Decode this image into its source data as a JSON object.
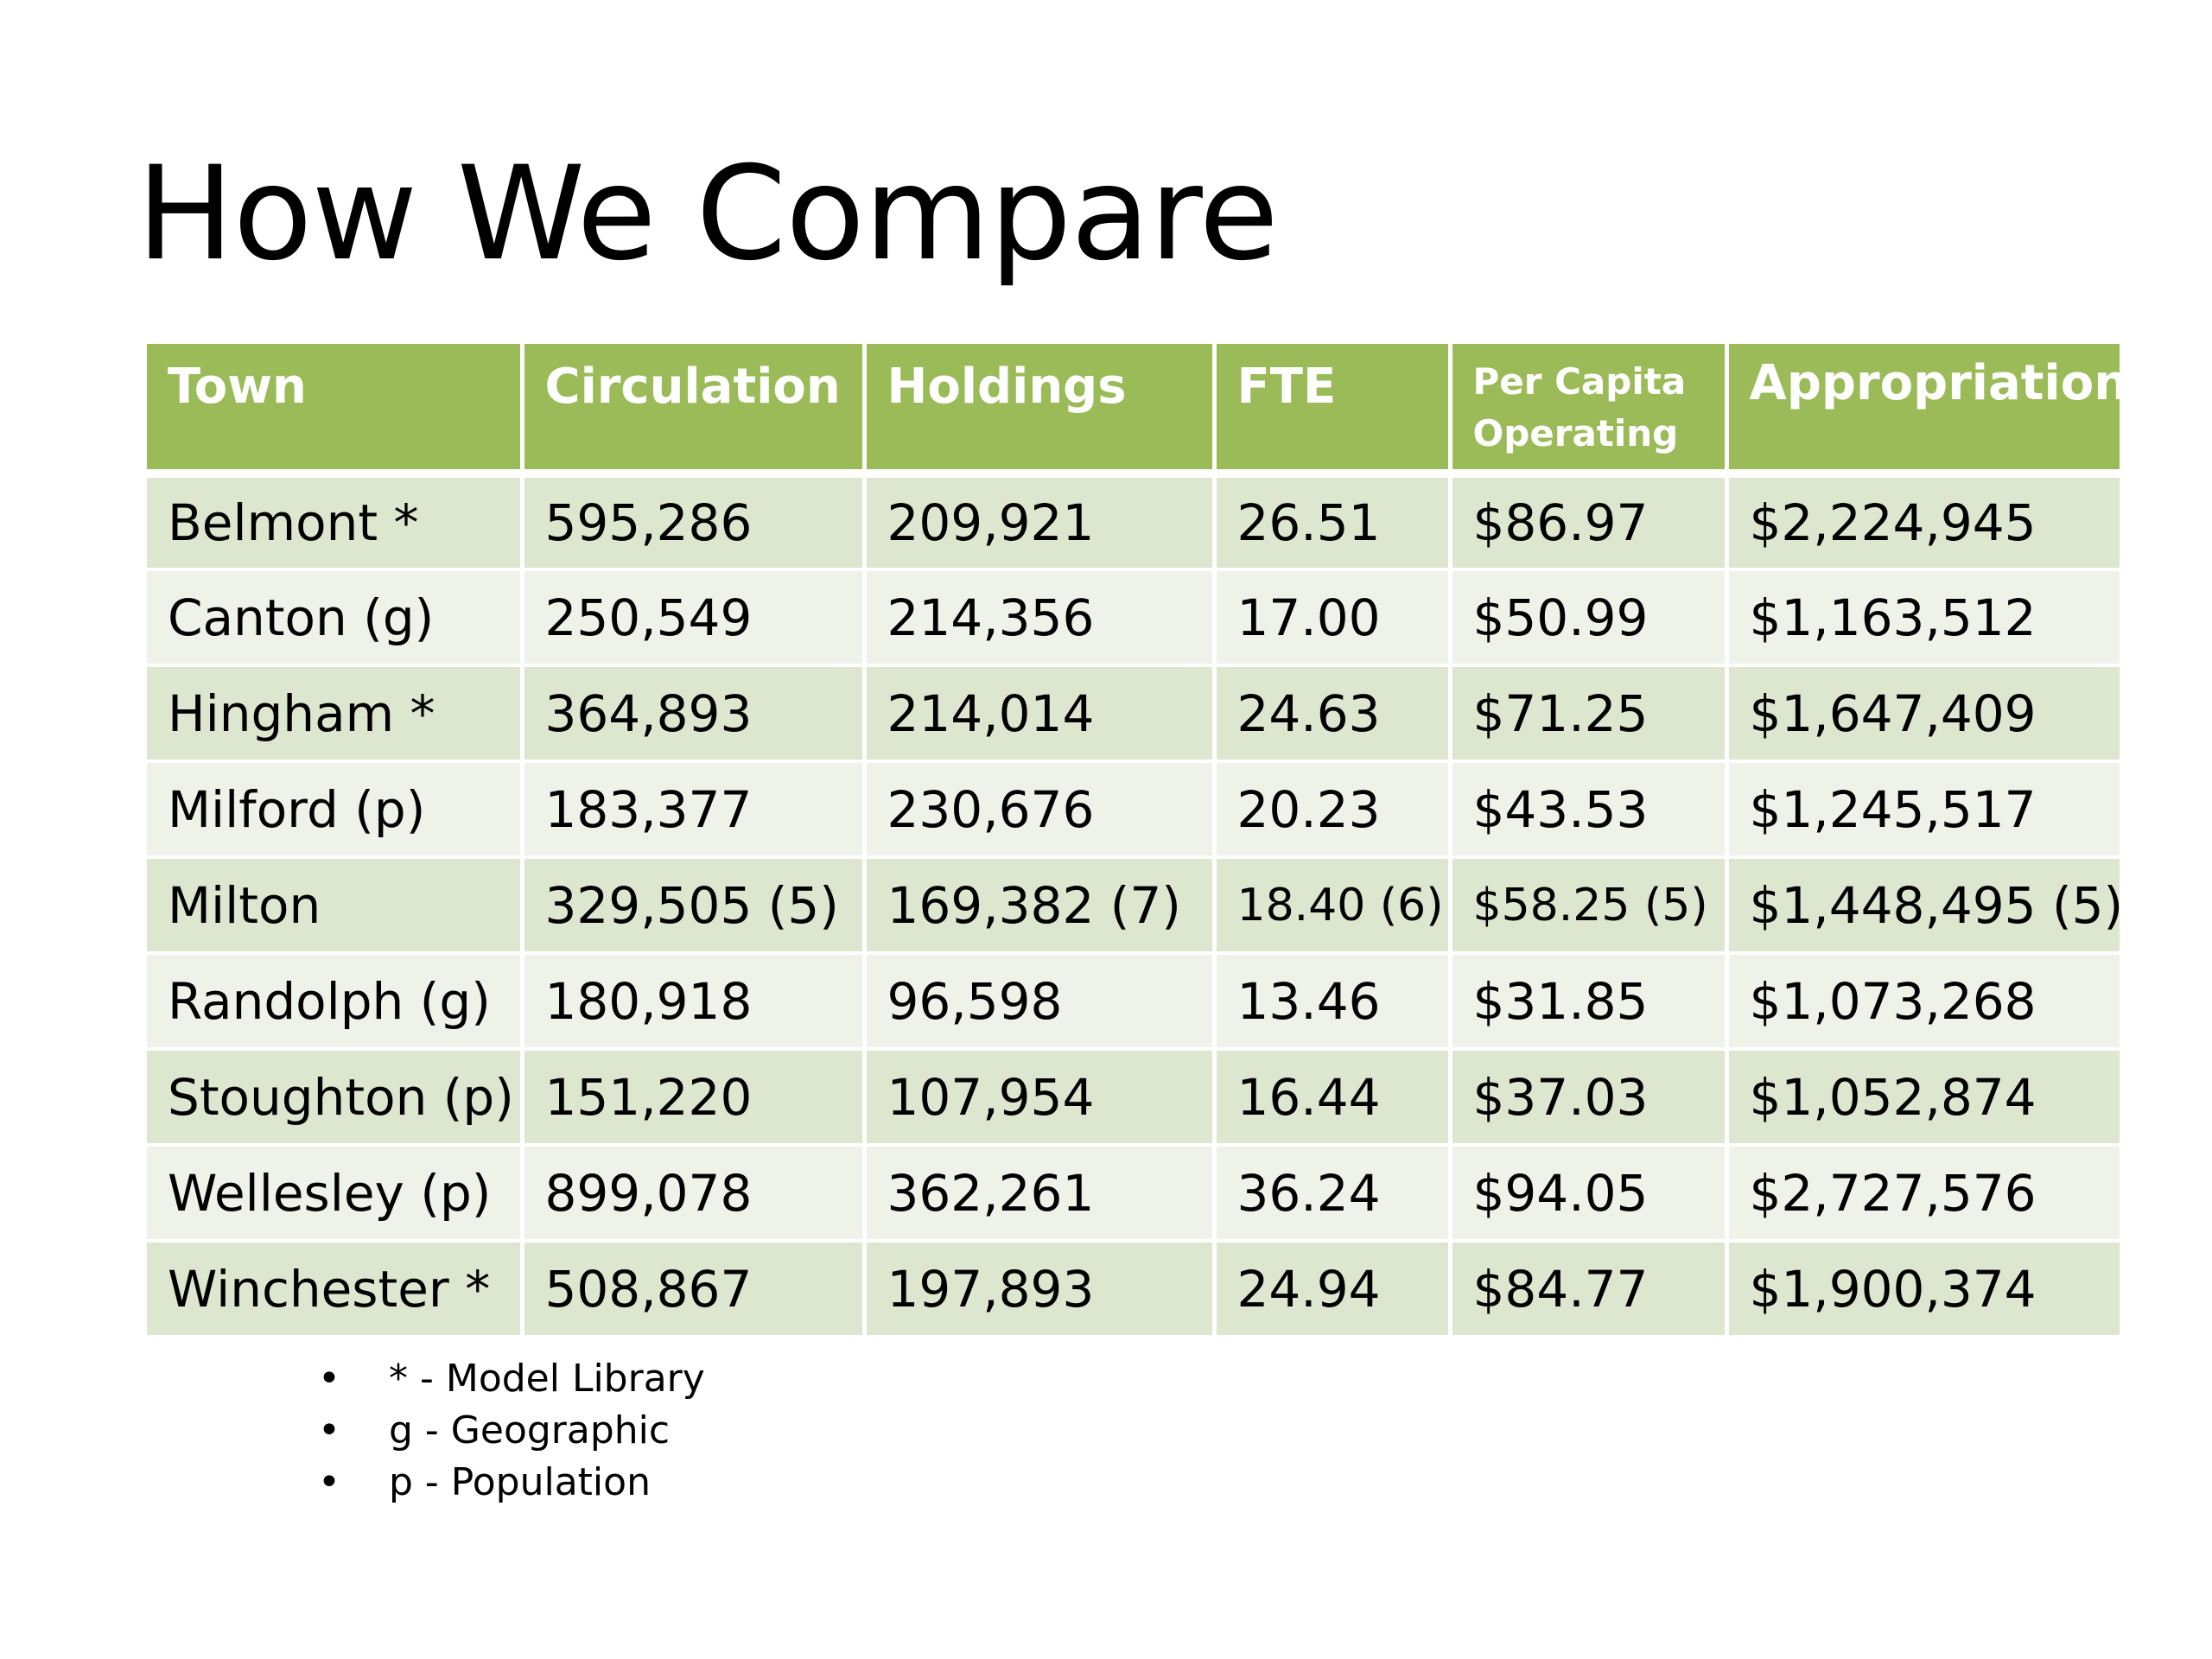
{
  "title": "How We Compare",
  "table": {
    "headers": {
      "town": "Town",
      "circulation": "Circulation",
      "holdings": "Holdings",
      "fte": "FTE",
      "per_capita_line1": "Per Capita",
      "per_capita_line2": "Operating",
      "appropriation": "Appropriation"
    },
    "rows": [
      [
        "Belmont *",
        "595,286",
        "209,921",
        "26.51",
        "$86.97",
        "$2,224,945"
      ],
      [
        "Canton (g)",
        "250,549",
        "214,356",
        "17.00",
        "$50.99",
        "$1,163,512"
      ],
      [
        "Hingham *",
        "364,893",
        "214,014",
        "24.63",
        "$71.25",
        "$1,647,409"
      ],
      [
        "Milford (p)",
        "183,377",
        "230,676",
        "20.23",
        "$43.53",
        "$1,245,517"
      ],
      [
        "Milton",
        "329,505 (5)",
        "169,382 (7)",
        "18.40 (6)",
        "$58.25 (5)",
        "$1,448,495 (5)"
      ],
      [
        "Randolph (g)",
        "180,918",
        "96,598",
        "13.46",
        "$31.85",
        "$1,073,268"
      ],
      [
        "Stoughton (p)",
        "151,220",
        "107,954",
        "16.44",
        "$37.03",
        "$1,052,874"
      ],
      [
        "Wellesley (p)",
        "899,078",
        "362,261",
        "36.24",
        "$94.05",
        "$2,727,576"
      ],
      [
        "Winchester *",
        "508,867",
        "197,893",
        "24.94",
        "$84.77",
        "$1,900,374"
      ]
    ]
  },
  "footnotes": {
    "bullet": "•",
    "items": [
      "* - Model Library",
      "g - Geographic",
      "p - Population"
    ]
  },
  "colors": {
    "header_bg": "#9bbb59",
    "row_odd": "#dde6cf",
    "row_even": "#eef2e8"
  }
}
